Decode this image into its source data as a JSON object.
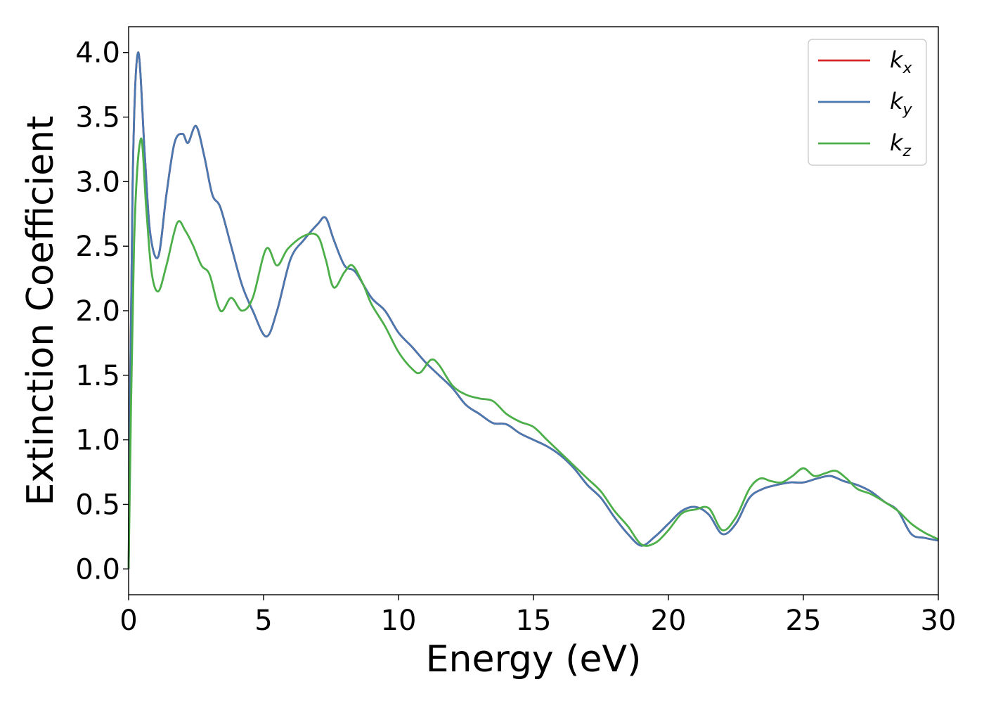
{
  "chart_data": {
    "type": "line",
    "title": "",
    "xlabel": "Energy (eV)",
    "ylabel": "Extinction Coefficient",
    "xlim": [
      0,
      30
    ],
    "ylim": [
      -0.2,
      4.2
    ],
    "xticks": [
      0,
      5,
      10,
      15,
      20,
      25,
      30
    ],
    "xtick_labels": [
      "0",
      "5",
      "10",
      "15",
      "20",
      "25",
      "30"
    ],
    "yticks": [
      0.0,
      0.5,
      1.0,
      1.5,
      2.0,
      2.5,
      3.0,
      3.5,
      4.0
    ],
    "ytick_labels": [
      "0.0",
      "0.5",
      "1.0",
      "1.5",
      "2.0",
      "2.5",
      "3.0",
      "3.5",
      "4.0"
    ],
    "grid": false,
    "legend_position": "top-right",
    "series": [
      {
        "name": "k",
        "subscript": "x",
        "color": "#d62728",
        "x": [
          0,
          0.15,
          0.35,
          0.6,
          0.8,
          1.1,
          1.4,
          1.7,
          2.0,
          2.2,
          2.5,
          2.8,
          3.1,
          3.4,
          3.8,
          4.2,
          4.6,
          5.1,
          5.5,
          6.0,
          6.5,
          7.0,
          7.3,
          7.6,
          8.0,
          8.4,
          9.0,
          9.5,
          10.0,
          10.5,
          11.0,
          11.5,
          12.0,
          12.5,
          13.0,
          13.5,
          14.0,
          14.5,
          15.0,
          15.5,
          16.0,
          16.5,
          17.0,
          17.5,
          18.0,
          18.5,
          19.0,
          19.5,
          20.0,
          20.5,
          21.0,
          21.5,
          22.0,
          22.5,
          23.0,
          23.5,
          24.0,
          24.5,
          25.0,
          25.5,
          26.0,
          26.5,
          27.0,
          27.5,
          28.0,
          28.5,
          29.0,
          29.5,
          30.0
        ],
        "y": [
          0.0,
          3.0,
          4.0,
          3.2,
          2.6,
          2.42,
          2.9,
          3.3,
          3.37,
          3.3,
          3.43,
          3.2,
          2.9,
          2.8,
          2.5,
          2.2,
          2.0,
          1.8,
          2.0,
          2.4,
          2.55,
          2.67,
          2.72,
          2.55,
          2.35,
          2.3,
          2.1,
          2.0,
          1.83,
          1.72,
          1.6,
          1.5,
          1.4,
          1.27,
          1.2,
          1.13,
          1.12,
          1.05,
          1.0,
          0.95,
          0.88,
          0.78,
          0.65,
          0.55,
          0.4,
          0.27,
          0.18,
          0.25,
          0.35,
          0.45,
          0.48,
          0.42,
          0.27,
          0.35,
          0.55,
          0.62,
          0.65,
          0.67,
          0.67,
          0.7,
          0.72,
          0.68,
          0.65,
          0.6,
          0.52,
          0.45,
          0.27,
          0.24,
          0.22
        ]
      },
      {
        "name": "k",
        "subscript": "y",
        "color": "#4a78b0",
        "x": [
          0,
          0.15,
          0.35,
          0.6,
          0.8,
          1.1,
          1.4,
          1.7,
          2.0,
          2.2,
          2.5,
          2.8,
          3.1,
          3.4,
          3.8,
          4.2,
          4.6,
          5.1,
          5.5,
          6.0,
          6.5,
          7.0,
          7.3,
          7.6,
          8.0,
          8.4,
          9.0,
          9.5,
          10.0,
          10.5,
          11.0,
          11.5,
          12.0,
          12.5,
          13.0,
          13.5,
          14.0,
          14.5,
          15.0,
          15.5,
          16.0,
          16.5,
          17.0,
          17.5,
          18.0,
          18.5,
          19.0,
          19.5,
          20.0,
          20.5,
          21.0,
          21.5,
          22.0,
          22.5,
          23.0,
          23.5,
          24.0,
          24.5,
          25.0,
          25.5,
          26.0,
          26.5,
          27.0,
          27.5,
          28.0,
          28.5,
          29.0,
          29.5,
          30.0
        ],
        "y": [
          0.0,
          3.0,
          4.0,
          3.2,
          2.6,
          2.42,
          2.9,
          3.3,
          3.37,
          3.3,
          3.43,
          3.2,
          2.9,
          2.8,
          2.5,
          2.2,
          2.0,
          1.8,
          2.0,
          2.4,
          2.55,
          2.67,
          2.72,
          2.55,
          2.35,
          2.3,
          2.1,
          2.0,
          1.83,
          1.72,
          1.6,
          1.5,
          1.4,
          1.27,
          1.2,
          1.13,
          1.12,
          1.05,
          1.0,
          0.95,
          0.88,
          0.78,
          0.65,
          0.55,
          0.4,
          0.27,
          0.18,
          0.25,
          0.35,
          0.45,
          0.48,
          0.42,
          0.27,
          0.35,
          0.55,
          0.62,
          0.65,
          0.67,
          0.67,
          0.7,
          0.72,
          0.68,
          0.65,
          0.6,
          0.52,
          0.45,
          0.27,
          0.24,
          0.22
        ]
      },
      {
        "name": "k",
        "subscript": "z",
        "color": "#4daf4a",
        "x": [
          0,
          0.2,
          0.45,
          0.65,
          0.85,
          1.1,
          1.4,
          1.8,
          2.1,
          2.4,
          2.7,
          3.0,
          3.4,
          3.8,
          4.2,
          4.6,
          5.1,
          5.5,
          5.9,
          6.5,
          7.0,
          7.3,
          7.6,
          8.0,
          8.3,
          8.7,
          9.0,
          9.5,
          10.0,
          10.5,
          10.8,
          11.2,
          11.5,
          12.0,
          12.5,
          13.0,
          13.5,
          14.0,
          14.5,
          15.0,
          15.5,
          16.0,
          16.5,
          17.0,
          17.5,
          18.0,
          18.5,
          19.0,
          19.5,
          20.0,
          20.5,
          21.0,
          21.5,
          22.0,
          22.5,
          23.0,
          23.4,
          23.8,
          24.2,
          24.6,
          25.0,
          25.4,
          25.8,
          26.2,
          26.6,
          27.0,
          27.5,
          28.0,
          28.5,
          29.0,
          29.5,
          30.0
        ],
        "y": [
          0.0,
          2.5,
          3.33,
          2.8,
          2.3,
          2.15,
          2.35,
          2.68,
          2.62,
          2.5,
          2.35,
          2.28,
          2.0,
          2.1,
          2.0,
          2.1,
          2.48,
          2.35,
          2.48,
          2.58,
          2.58,
          2.4,
          2.18,
          2.3,
          2.35,
          2.2,
          2.05,
          1.88,
          1.68,
          1.55,
          1.52,
          1.62,
          1.58,
          1.42,
          1.35,
          1.32,
          1.3,
          1.2,
          1.14,
          1.1,
          1.0,
          0.9,
          0.8,
          0.7,
          0.6,
          0.45,
          0.33,
          0.19,
          0.2,
          0.3,
          0.43,
          0.46,
          0.47,
          0.3,
          0.4,
          0.62,
          0.7,
          0.68,
          0.67,
          0.72,
          0.78,
          0.72,
          0.74,
          0.76,
          0.7,
          0.62,
          0.58,
          0.52,
          0.45,
          0.35,
          0.28,
          0.23
        ]
      }
    ]
  }
}
